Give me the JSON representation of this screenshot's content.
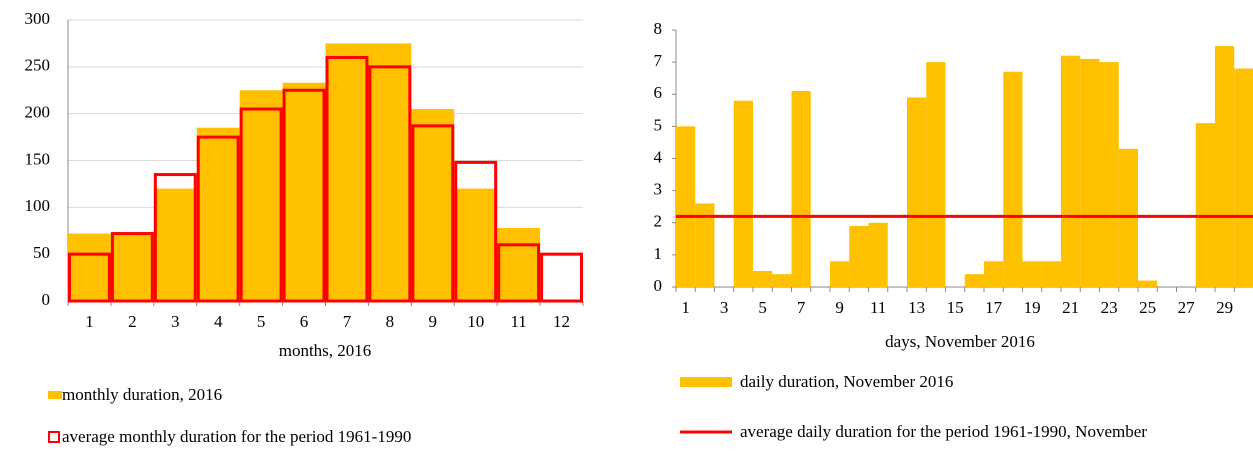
{
  "chart_data": [
    {
      "type": "bar",
      "x_label": "months, 2016",
      "categories": [
        1,
        2,
        3,
        4,
        5,
        6,
        7,
        8,
        9,
        10,
        11,
        12
      ],
      "series": [
        {
          "name": "monthly duration, 2016",
          "color": "#ffc000",
          "kind": "filled",
          "values": [
            72,
            72,
            120,
            185,
            225,
            233,
            275,
            275,
            205,
            120,
            78,
            0
          ]
        },
        {
          "name": "average monthly duration for the period 1961-1990",
          "color": "#ff0000",
          "kind": "outline",
          "values": [
            50,
            72,
            135,
            175,
            205,
            225,
            260,
            250,
            187,
            148,
            60,
            50
          ]
        }
      ],
      "ylim": [
        0,
        300
      ],
      "yticks": [
        0,
        50,
        100,
        150,
        200,
        250,
        300
      ],
      "grid": true
    },
    {
      "type": "bar",
      "x_label": "days, November 2016",
      "categories": [
        1,
        null,
        3,
        null,
        5,
        null,
        7,
        null,
        9,
        null,
        11,
        null,
        13,
        null,
        15,
        null,
        17,
        null,
        19,
        null,
        21,
        null,
        23,
        null,
        25,
        null,
        27,
        null,
        29,
        null
      ],
      "series": [
        {
          "name": "daily duration, November 2016",
          "color": "#ffc000",
          "kind": "filled",
          "values": [
            5.0,
            2.6,
            0,
            5.8,
            0.5,
            0.4,
            6.1,
            0,
            0.8,
            1.9,
            2.0,
            0,
            5.9,
            7.0,
            0,
            0.4,
            0.8,
            6.7,
            0.8,
            0.8,
            7.2,
            7.1,
            7.0,
            4.3,
            0.2,
            0,
            0,
            5.1,
            7.5,
            6.8
          ]
        },
        {
          "name": "average daily duration for the period 1961-1990, November",
          "color": "#ff0000",
          "kind": "hline",
          "value": 2.2
        }
      ],
      "ylim": [
        0,
        8
      ],
      "yticks": [
        0,
        1,
        2,
        3,
        4,
        5,
        6,
        7,
        8
      ],
      "grid": false
    }
  ]
}
